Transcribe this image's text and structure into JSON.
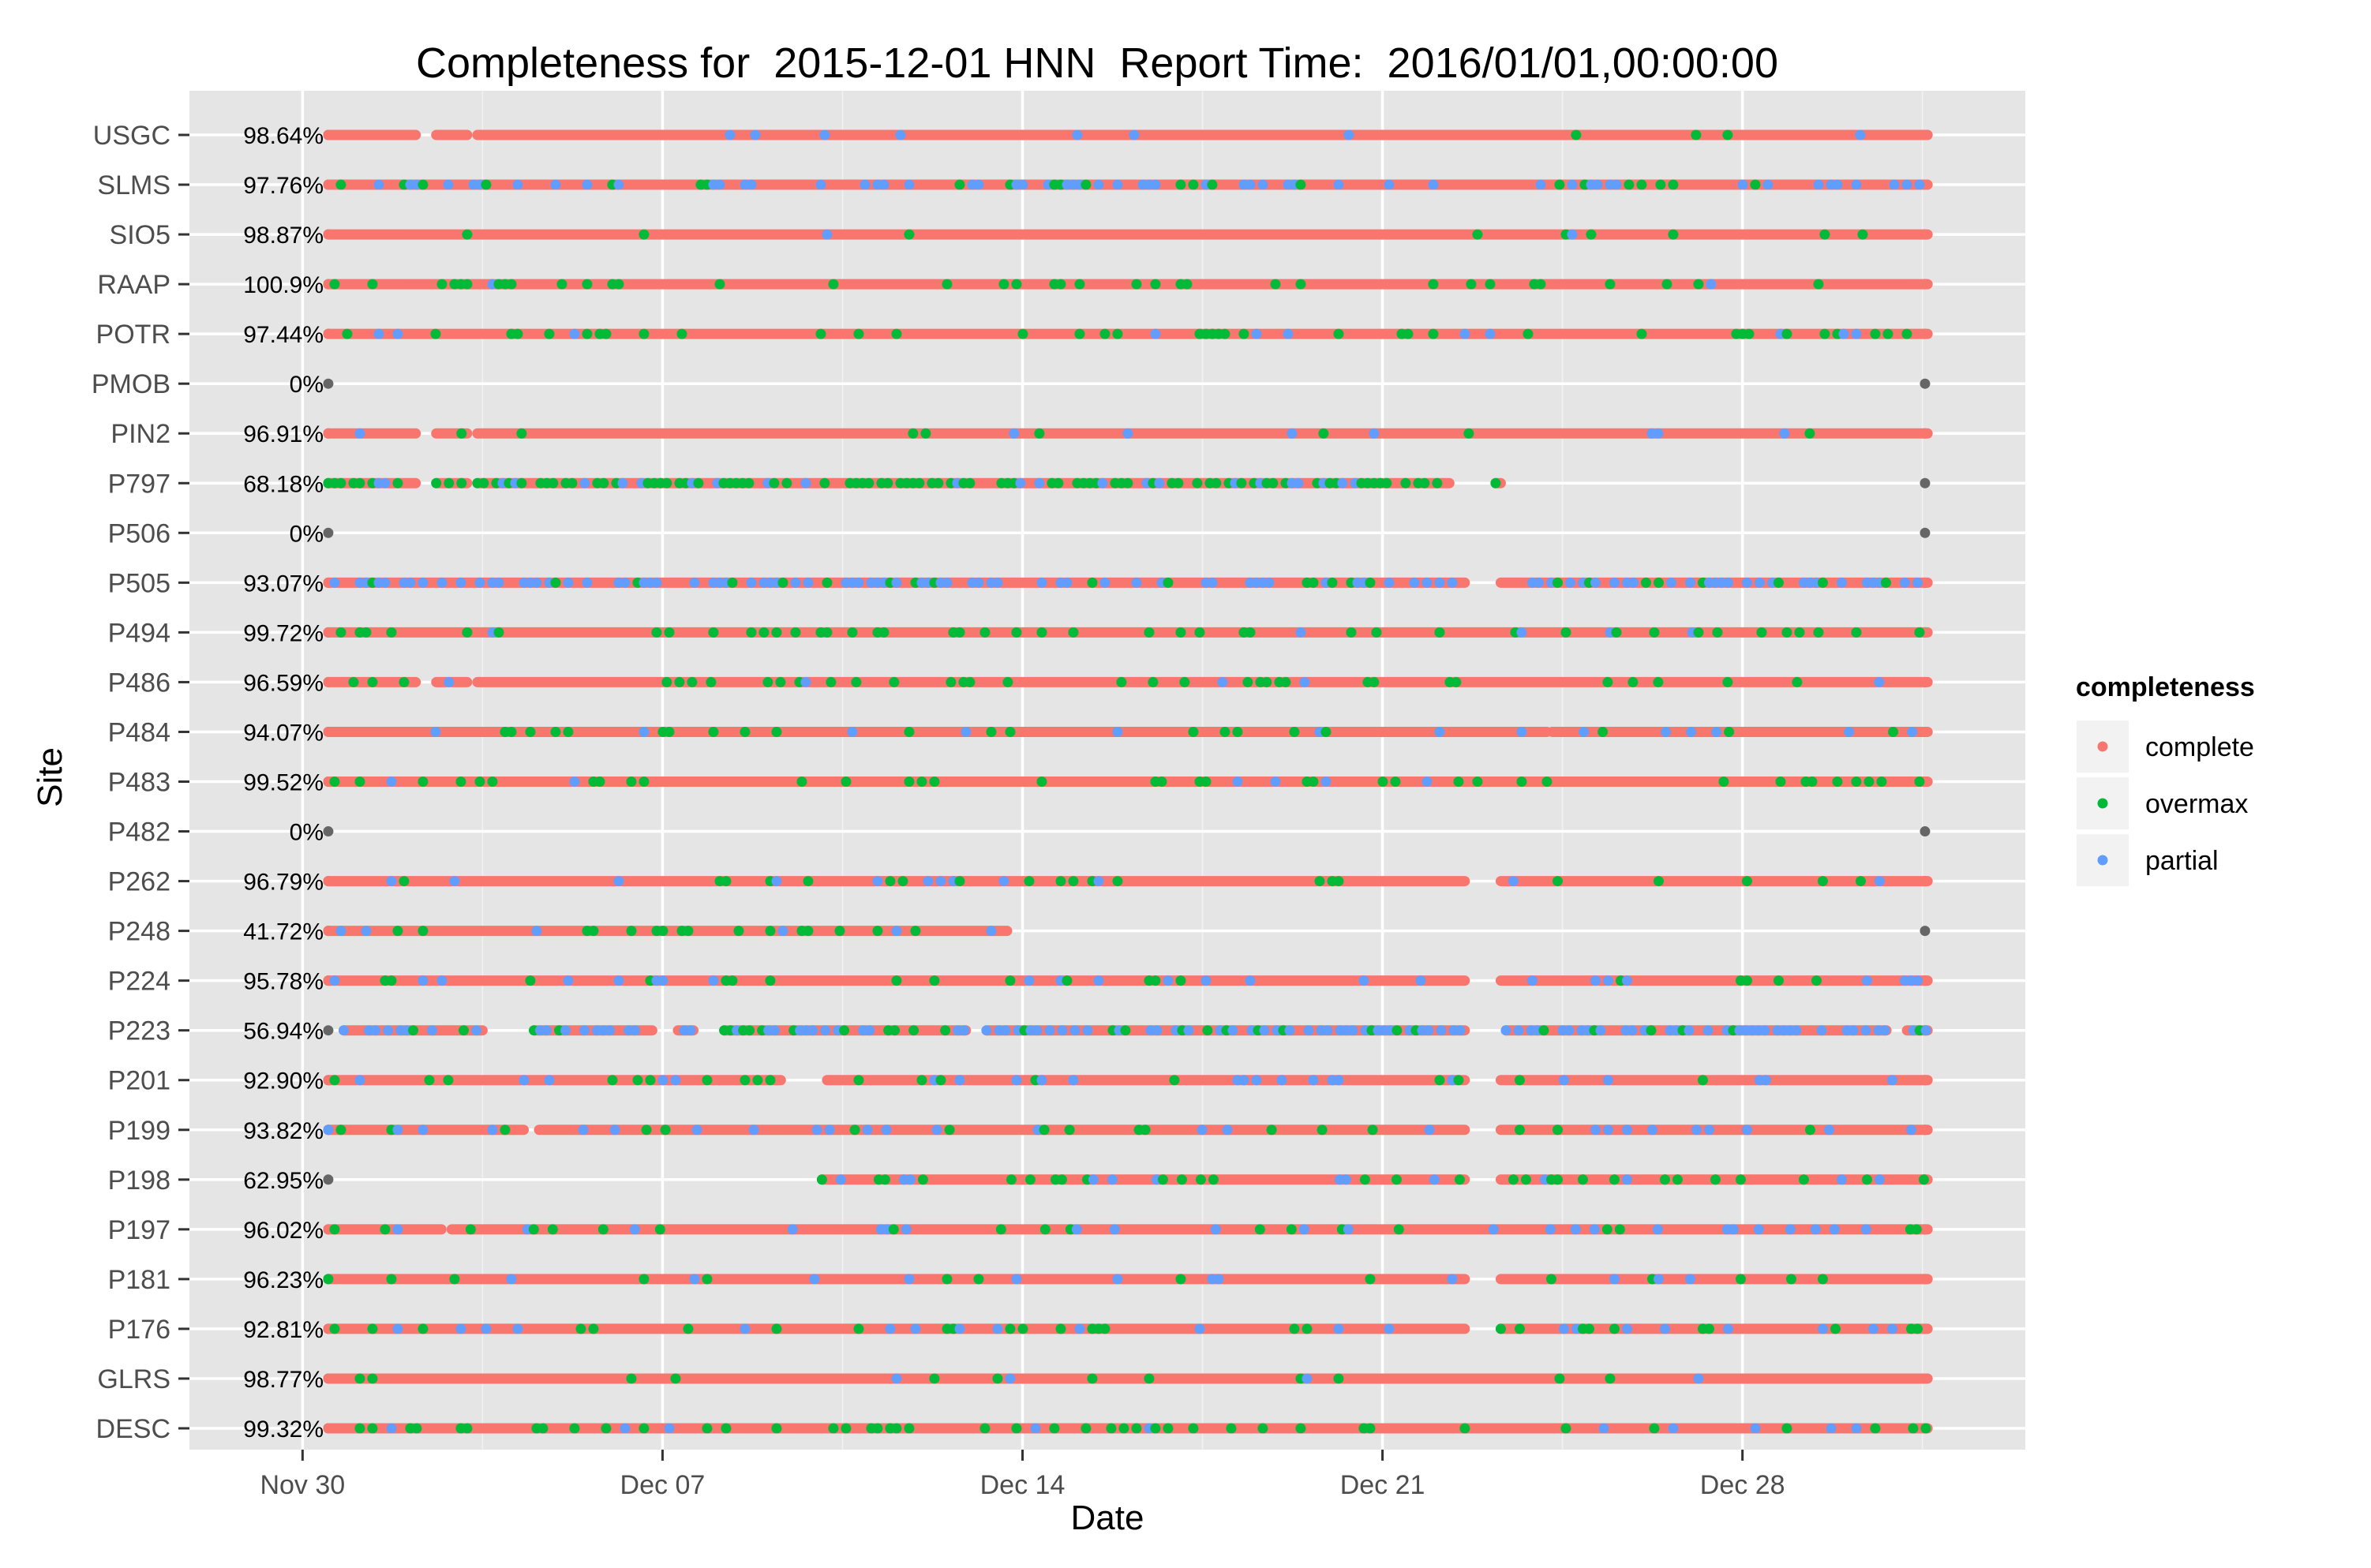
{
  "chart_data": {
    "type": "scatter",
    "title": "Completeness for  2015-12-01 HNN  Report Time:  2016/01/01,00:00:00",
    "xlabel": "Date",
    "ylabel": "Site",
    "x_ticks": [
      "Nov 30",
      "Dec 07",
      "Dec 14",
      "Dec 21",
      "Dec 28"
    ],
    "x_tick_days": [
      0,
      7,
      14,
      21,
      28
    ],
    "xlim": [
      -2.2,
      33.5
    ],
    "legend": {
      "title": "completeness",
      "position": "right",
      "entries": [
        {
          "name": "complete",
          "color": "#F8766D"
        },
        {
          "name": "overmax",
          "color": "#00BA38"
        },
        {
          "name": "partial",
          "color": "#619CFF"
        }
      ]
    },
    "endpoint_color": "#666666",
    "grid": true,
    "sites": [
      {
        "name": "USGC",
        "pct": "98.64%",
        "segments": [
          [
            0.5,
            2.2
          ],
          [
            2.6,
            3.2
          ],
          [
            3.4,
            31.6
          ]
        ],
        "over": 0.05,
        "part": 0.03
      },
      {
        "name": "SLMS",
        "pct": "97.76%",
        "segments": [
          [
            0.5,
            31.6
          ]
        ],
        "over": 0.1,
        "part": 0.2
      },
      {
        "name": "SIO5",
        "pct": "98.87%",
        "segments": [
          [
            0.5,
            31.6
          ]
        ],
        "over": 0.03,
        "part": 0.01
      },
      {
        "name": "RAAP",
        "pct": "100.9%",
        "segments": [
          [
            0.5,
            31.6
          ]
        ],
        "over": 0.12,
        "part": 0.01
      },
      {
        "name": "POTR",
        "pct": "97.44%",
        "segments": [
          [
            0.5,
            31.6
          ]
        ],
        "over": 0.12,
        "part": 0.03
      },
      {
        "name": "PMOB",
        "pct": "0%",
        "segments": [],
        "over": 0,
        "part": 0
      },
      {
        "name": "PIN2",
        "pct": "96.91%",
        "segments": [
          [
            0.5,
            2.2
          ],
          [
            2.6,
            3.2
          ],
          [
            3.4,
            31.6
          ]
        ],
        "over": 0.05,
        "part": 0.03
      },
      {
        "name": "P797",
        "pct": "68.18%",
        "segments": [
          [
            0.5,
            2.2
          ],
          [
            2.6,
            3.2
          ],
          [
            3.4,
            22.3
          ],
          [
            23.2,
            23.3
          ]
        ],
        "over": 0.55,
        "part": 0.12
      },
      {
        "name": "P506",
        "pct": "0%",
        "segments": [],
        "over": 0,
        "part": 0
      },
      {
        "name": "P505",
        "pct": "93.07%",
        "segments": [
          [
            0.5,
            22.6
          ],
          [
            23.3,
            31.6
          ]
        ],
        "over": 0.1,
        "part": 0.4
      },
      {
        "name": "P494",
        "pct": "99.72%",
        "segments": [
          [
            0.5,
            31.6
          ]
        ],
        "over": 0.15,
        "part": 0.01
      },
      {
        "name": "P486",
        "pct": "96.59%",
        "segments": [
          [
            0.5,
            2.2
          ],
          [
            2.6,
            3.2
          ],
          [
            3.4,
            31.6
          ]
        ],
        "over": 0.12,
        "part": 0.02
      },
      {
        "name": "P484",
        "pct": "94.07%",
        "segments": [
          [
            0.5,
            24.2
          ],
          [
            24.3,
            31.6
          ]
        ],
        "over": 0.08,
        "part": 0.08
      },
      {
        "name": "P483",
        "pct": "99.52%",
        "segments": [
          [
            0.5,
            31.6
          ]
        ],
        "over": 0.15,
        "part": 0.01
      },
      {
        "name": "P482",
        "pct": "0%",
        "segments": [],
        "over": 0,
        "part": 0
      },
      {
        "name": "P262",
        "pct": "96.79%",
        "segments": [
          [
            0.5,
            22.6
          ],
          [
            23.3,
            31.6
          ]
        ],
        "over": 0.08,
        "part": 0.05
      },
      {
        "name": "P248",
        "pct": "41.72%",
        "segments": [
          [
            0.5,
            13.7
          ]
        ],
        "over": 0.2,
        "part": 0.05
      },
      {
        "name": "P224",
        "pct": "95.78%",
        "segments": [
          [
            0.5,
            22.6
          ],
          [
            23.3,
            31.6
          ]
        ],
        "over": 0.06,
        "part": 0.1
      },
      {
        "name": "P223",
        "pct": "56.94%",
        "segments": [
          [
            0.8,
            3.5
          ],
          [
            4.5,
            6.8
          ],
          [
            7.3,
            7.6
          ],
          [
            8.2,
            12.9
          ],
          [
            13.3,
            22.6
          ],
          [
            23.4,
            30.8
          ],
          [
            31.2,
            31.6
          ]
        ],
        "over": 0.15,
        "part": 0.45
      },
      {
        "name": "P201",
        "pct": "92.90%",
        "segments": [
          [
            0.5,
            9.3
          ],
          [
            10.2,
            22.6
          ],
          [
            23.3,
            31.6
          ]
        ],
        "over": 0.07,
        "part": 0.08
      },
      {
        "name": "P199",
        "pct": "93.82%",
        "segments": [
          [
            0.5,
            4.3
          ],
          [
            4.6,
            22.6
          ],
          [
            23.3,
            31.6
          ]
        ],
        "over": 0.08,
        "part": 0.08
      },
      {
        "name": "P198",
        "pct": "62.95%",
        "segments": [
          [
            10.1,
            22.6
          ],
          [
            23.3,
            31.6
          ]
        ],
        "over": 0.15,
        "part": 0.06
      },
      {
        "name": "P197",
        "pct": "96.02%",
        "segments": [
          [
            0.5,
            2.7
          ],
          [
            2.9,
            31.6
          ]
        ],
        "over": 0.08,
        "part": 0.08
      },
      {
        "name": "P181",
        "pct": "96.23%",
        "segments": [
          [
            0.5,
            22.6
          ],
          [
            23.3,
            31.6
          ]
        ],
        "over": 0.05,
        "part": 0.05
      },
      {
        "name": "P176",
        "pct": "92.81%",
        "segments": [
          [
            0.5,
            22.6
          ],
          [
            23.3,
            31.6
          ]
        ],
        "over": 0.14,
        "part": 0.05
      },
      {
        "name": "GLRS",
        "pct": "98.77%",
        "segments": [
          [
            0.5,
            31.6
          ]
        ],
        "over": 0.05,
        "part": 0.01
      },
      {
        "name": "DESC",
        "pct": "99.32%",
        "segments": [
          [
            0.5,
            31.6
          ]
        ],
        "over": 0.15,
        "part": 0.02
      }
    ]
  }
}
